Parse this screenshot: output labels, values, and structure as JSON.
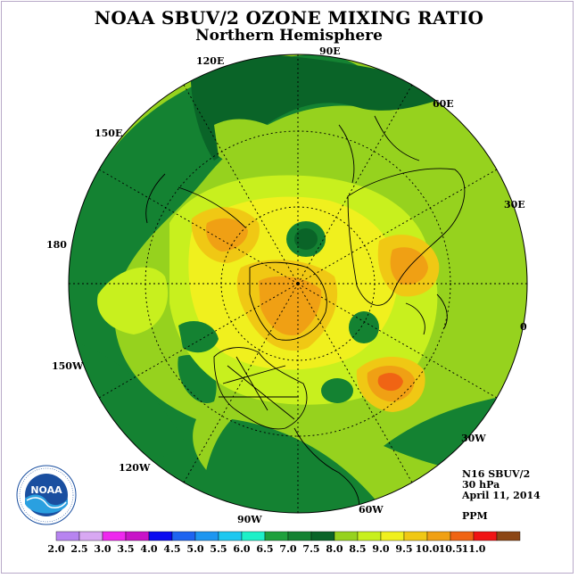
{
  "title": "NOAA SBUV/2 OZONE MIXING RATIO",
  "subtitle": "Northern Hemisphere",
  "longitude_labels": [
    {
      "text": "90E"
    },
    {
      "text": "60E"
    },
    {
      "text": "30E"
    },
    {
      "text": "0"
    },
    {
      "text": "30W"
    },
    {
      "text": "60W"
    },
    {
      "text": "90W"
    },
    {
      "text": "120W"
    },
    {
      "text": "150W"
    },
    {
      "text": "180"
    },
    {
      "text": "150E"
    },
    {
      "text": "120E"
    }
  ],
  "info": {
    "instrument": "N16 SBUV/2",
    "level": "30 hPa",
    "date": "April 11, 2014",
    "units": "PPM"
  },
  "colorbar": {
    "labels": [
      "2.0",
      "2.5",
      "3.0",
      "3.5",
      "4.0",
      "4.5",
      "5.0",
      "5.5",
      "6.0",
      "6.5",
      "7.0",
      "7.5",
      "8.0",
      "8.5",
      "9.0",
      "9.5",
      "10.0",
      "10.5",
      "11.0"
    ],
    "colors": [
      "#b784f0",
      "#d8a8f2",
      "#ee28ee",
      "#c814c8",
      "#0a0af0",
      "#1e64f0",
      "#1e96f0",
      "#1ec8f0",
      "#1ef0c8",
      "#1ea03c",
      "#148232",
      "#0a6428",
      "#96d21e",
      "#c8f01e",
      "#f0f01e",
      "#f0c814",
      "#f0a014",
      "#f06414",
      "#f01414",
      "#8c4614"
    ]
  },
  "logo": {
    "text": "NOAA"
  }
}
